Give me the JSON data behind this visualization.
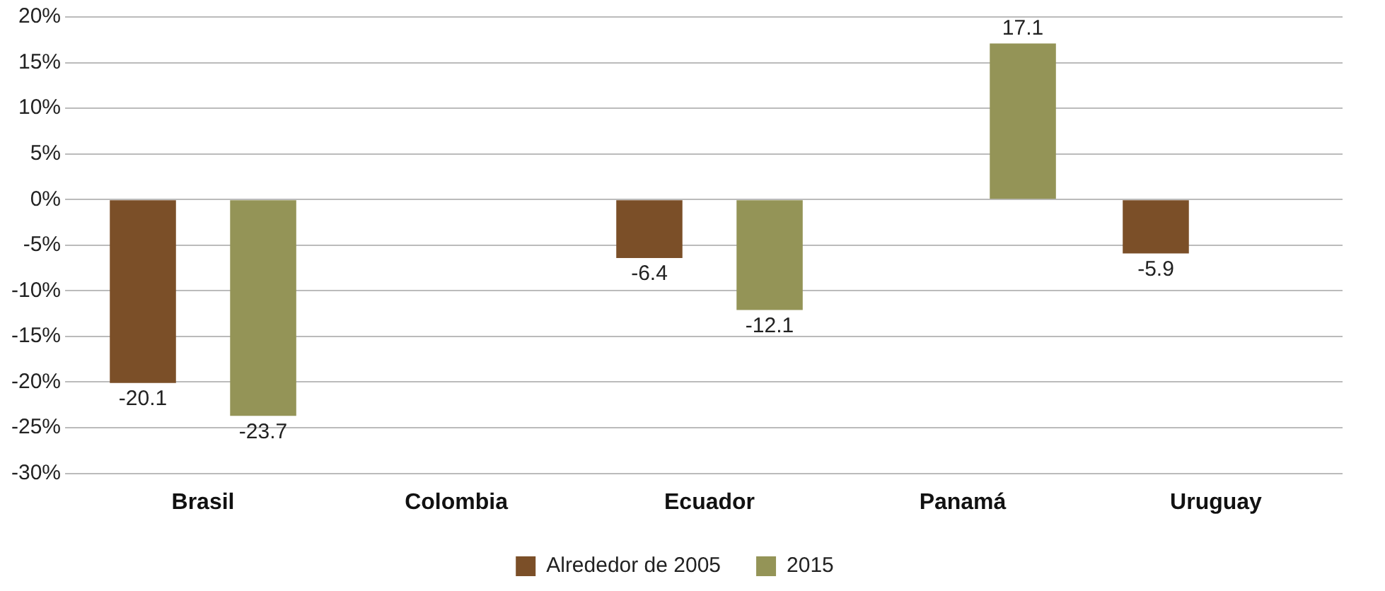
{
  "chart_data": {
    "type": "bar",
    "categories": [
      "Brasil",
      "Colombia",
      "Ecuador",
      "Panamá",
      "Uruguay"
    ],
    "series": [
      {
        "name": "Alrededor de 2005",
        "color": "#7b4f28",
        "values": [
          -20.1,
          null,
          -6.4,
          null,
          -5.9
        ]
      },
      {
        "name": "2015",
        "color": "#949457",
        "values": [
          -23.7,
          null,
          -12.1,
          17.1,
          null
        ]
      }
    ],
    "ylim": [
      -30,
      20
    ],
    "yticks": [
      {
        "value": -30,
        "label": "-30%"
      },
      {
        "value": -25,
        "label": "-25%"
      },
      {
        "value": -20,
        "label": "-20%"
      },
      {
        "value": -15,
        "label": "-15%"
      },
      {
        "value": -10,
        "label": "-10%"
      },
      {
        "value": -5,
        "label": "-5%"
      },
      {
        "value": 0,
        "label": "0%"
      },
      {
        "value": 5,
        "label": "5%"
      },
      {
        "value": 10,
        "label": "10%"
      },
      {
        "value": 15,
        "label": "15%"
      },
      {
        "value": 20,
        "label": "20%"
      }
    ],
    "grid": "y",
    "legend": "bottom",
    "data_labels": true
  }
}
